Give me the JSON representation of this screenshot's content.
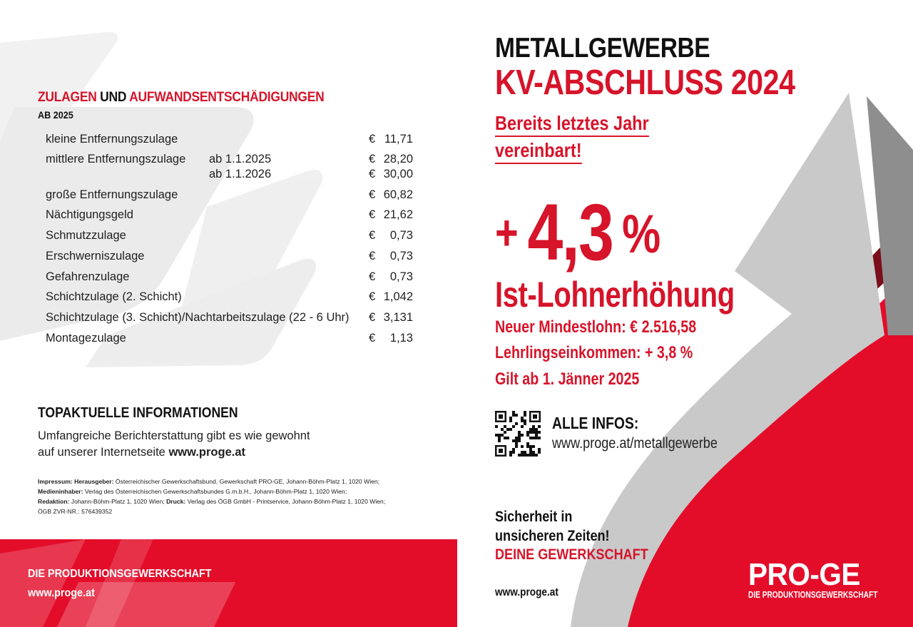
{
  "left": {
    "heading_red1": "ZULAGEN",
    "heading_mid": " UND ",
    "heading_red2": "AUFWANDSENTSCHÄDIGUNGEN",
    "subheading": "AB 2025",
    "currency": "€",
    "allowances": [
      {
        "label": "kleine Entfernungszulage",
        "sub": "",
        "amount": "11,71"
      },
      {
        "label": "mittlere Entfernungszulage",
        "sub": "ab 1.1.2025",
        "amount": "28,20"
      },
      {
        "label": "",
        "sub": "ab 1.1.2026",
        "amount": "30,00"
      },
      {
        "label": "große Entfernungszulage",
        "sub": "",
        "amount": "60,82"
      },
      {
        "label": "Nächtigungsgeld",
        "sub": "",
        "amount": "21,62"
      },
      {
        "label": "Schmutzzulage",
        "sub": "",
        "amount": "0,73"
      },
      {
        "label": "Erschwerniszulage",
        "sub": "",
        "amount": "0,73"
      },
      {
        "label": "Gefahrenzulage",
        "sub": "",
        "amount": "0,73"
      },
      {
        "label": "Schichtzulage (2. Schicht)",
        "sub": "",
        "amount": "1,042"
      },
      {
        "label": "Schichtzulage (3. Schicht)/Nachtarbeitszulage (22 - 6 Uhr)",
        "sub": "",
        "amount": "3,131"
      },
      {
        "label": "Montagezulage",
        "sub": "",
        "amount": "1,13"
      }
    ],
    "top_heading": "TOPAKTUELLE INFORMATIONEN",
    "top_line1": "Umfangreiche Berichterstattung gibt es wie gewohnt",
    "top_line2_prefix": "auf unserer Internetseite ",
    "top_line2_link": "www.proge.at",
    "imprint": {
      "l1_b": "Impressum: Herausgeber:",
      "l1": " Österreichischer Gewerkschaftsbund, Gewerkschaft PRO-GE, Johann-Böhm-Platz 1, 1020 Wien;",
      "l2_b": "Medieninhaber:",
      "l2": " Verlag des Österreichischen Gewerkschaftsbundes G.m.b.H., Johann-Böhm-Platz 1, 1020 Wien;",
      "l3_b": "Redaktion:",
      "l3": " Johann-Böhm-Platz 1, 1020 Wien; ",
      "l3_b2": "Druck:",
      "l3_2": " Verlag des ÖGB GmbH - Printservice, Johann-Böhm-Platz 1, 1020 Wien;",
      "l4": "ÖGB ZVR-NR.: 576439352"
    },
    "footer_line1": "DIE PRODUKTIONSGEWERKSCHAFT",
    "footer_line2": "www.proge.at"
  },
  "right": {
    "title1": "METALLGEWERBE",
    "title2": "KV-ABSCHLUSS 2024",
    "bereits1": "Bereits letztes Jahr ",
    "bereits2": "vereinbart!",
    "plus": "+",
    "percent_value": "4,3",
    "percent_sign": "%",
    "ist": "Ist-Lohnerhöhung",
    "neu": "Neuer Mindestlohn: € 2.516,58",
    "lehr": "Lehrlingseinkommen: + 3,8 %",
    "gilt": "Gilt ab 1. Jänner 2025",
    "alle_infos": "ALLE INFOS:",
    "infos_url": "www.proge.at/metallgewerbe",
    "sicherheit1": "Sicherheit in",
    "sicherheit2": "unsicheren Zeiten!",
    "deine": "DEINE GEWERKSCHAFT",
    "web": "www.proge.at",
    "logo_word": "PRO-GE",
    "logo_sub": "DIE PRODUKTIONSGEWERKSCHAFT"
  },
  "colors": {
    "brand_red": "#e30d2a",
    "text_red": "#d6142a",
    "dark_red": "#7a0e1a",
    "arrow_grey": "#c9c9c9"
  }
}
